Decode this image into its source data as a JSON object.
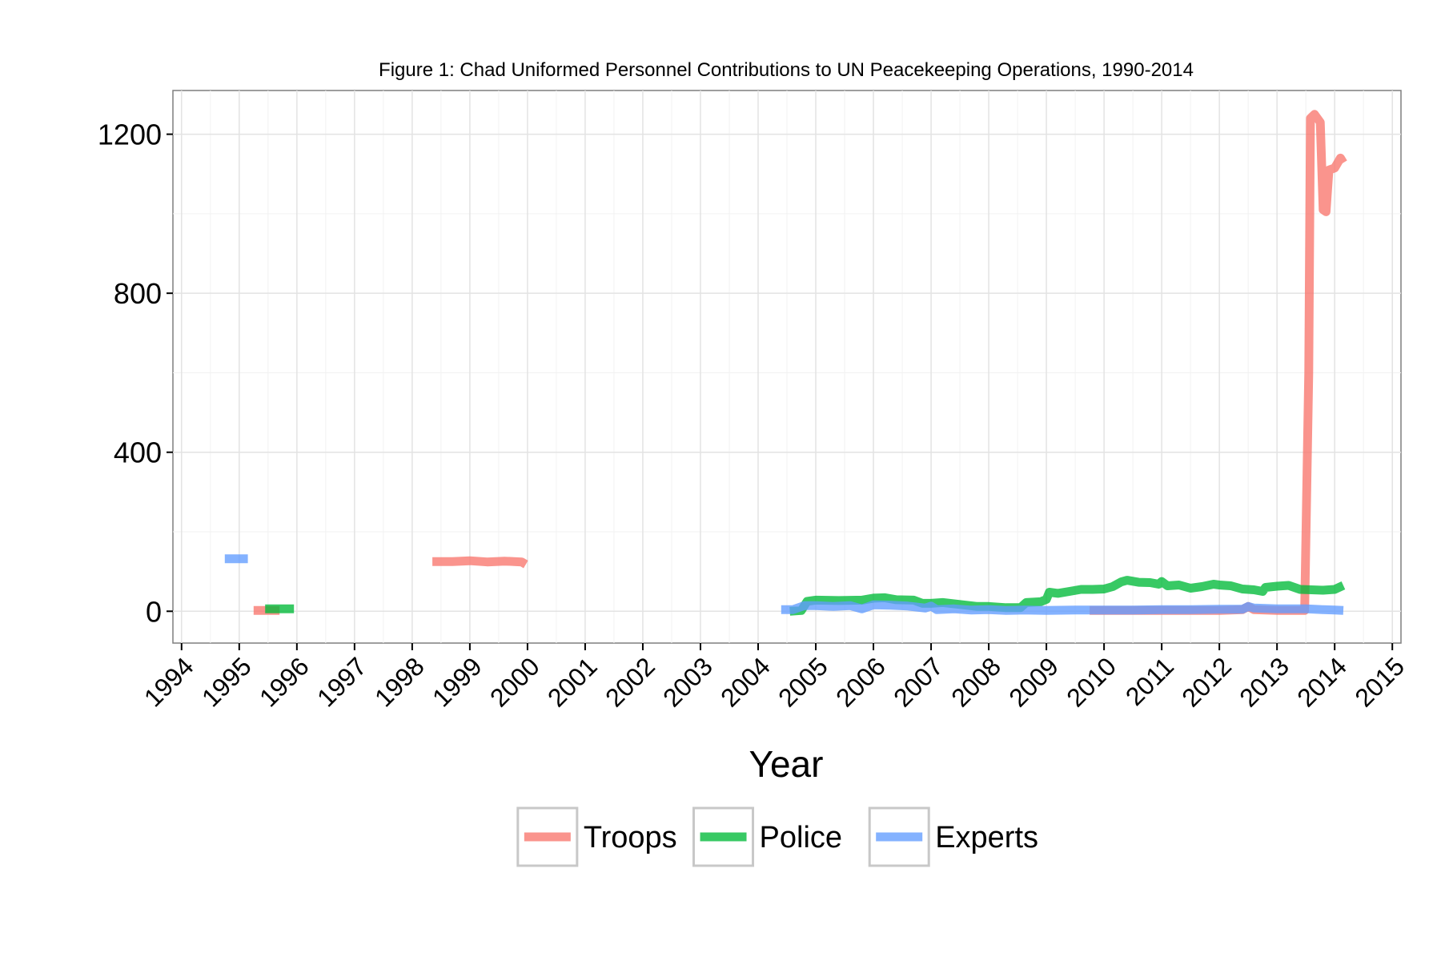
{
  "chart_data": {
    "type": "line",
    "title": "Figure 1: Chad Uniformed Personnel Contributions to UN Peacekeeping Operations, 1990-2014",
    "xlabel": "Year",
    "ylabel": "",
    "xlim": [
      1993.85,
      2015.15
    ],
    "ylim": [
      -80,
      1310
    ],
    "x_ticks": [
      "1994",
      "1995",
      "1996",
      "1997",
      "1998",
      "1999",
      "2000",
      "2001",
      "2002",
      "2003",
      "2004",
      "2005",
      "2006",
      "2007",
      "2008",
      "2009",
      "2010",
      "2011",
      "2012",
      "2013",
      "2014",
      "2015"
    ],
    "y_ticks": [
      "0",
      "400",
      "800",
      "1200"
    ],
    "grid": true,
    "legend_position": "bottom",
    "series": [
      {
        "name": "Troops",
        "color": "#F8766D",
        "segments": [
          [
            [
              1995.25,
              2
            ],
            [
              1995.7,
              2
            ]
          ],
          [
            [
              1998.35,
              125
            ],
            [
              1998.7,
              125
            ],
            [
              1999.0,
              127
            ],
            [
              1999.3,
              124
            ],
            [
              1999.6,
              126
            ],
            [
              1999.9,
              124
            ],
            [
              1999.97,
              118
            ]
          ],
          [
            [
              2009.75,
              2
            ],
            [
              2011.0,
              2
            ],
            [
              2012.0,
              2
            ],
            [
              2012.4,
              4
            ],
            [
              2012.5,
              12
            ],
            [
              2012.6,
              4
            ],
            [
              2013.0,
              2
            ],
            [
              2013.48,
              2
            ],
            [
              2013.55,
              600
            ],
            [
              2013.58,
              1240
            ],
            [
              2013.65,
              1250
            ],
            [
              2013.75,
              1230
            ],
            [
              2013.8,
              1010
            ],
            [
              2013.85,
              1005
            ],
            [
              2013.9,
              1110
            ],
            [
              2014.0,
              1115
            ],
            [
              2014.1,
              1140
            ],
            [
              2014.15,
              1128
            ]
          ]
        ]
      },
      {
        "name": "Police",
        "color": "#00BA38",
        "segments": [
          [
            [
              1995.45,
              6
            ],
            [
              1995.95,
              6
            ]
          ],
          [
            [
              2004.55,
              0
            ],
            [
              2004.75,
              2
            ],
            [
              2004.85,
              25
            ],
            [
              2005.0,
              28
            ],
            [
              2005.4,
              27
            ],
            [
              2005.8,
              28
            ],
            [
              2006.0,
              33
            ],
            [
              2006.2,
              34
            ],
            [
              2006.4,
              29
            ],
            [
              2006.7,
              28
            ],
            [
              2006.85,
              20
            ],
            [
              2007.0,
              20
            ],
            [
              2007.2,
              22
            ],
            [
              2007.5,
              17
            ],
            [
              2007.8,
              12
            ],
            [
              2008.0,
              12
            ],
            [
              2008.3,
              9
            ],
            [
              2008.55,
              9
            ],
            [
              2008.65,
              22
            ],
            [
              2008.9,
              24
            ],
            [
              2009.0,
              30
            ],
            [
              2009.05,
              48
            ],
            [
              2009.2,
              45
            ],
            [
              2009.4,
              50
            ],
            [
              2009.6,
              55
            ],
            [
              2009.8,
              55
            ],
            [
              2010.0,
              56
            ],
            [
              2010.15,
              62
            ],
            [
              2010.3,
              74
            ],
            [
              2010.4,
              78
            ],
            [
              2010.6,
              73
            ],
            [
              2010.8,
              72
            ],
            [
              2010.95,
              68
            ],
            [
              2011.0,
              75
            ],
            [
              2011.1,
              64
            ],
            [
              2011.3,
              66
            ],
            [
              2011.5,
              58
            ],
            [
              2011.7,
              62
            ],
            [
              2011.9,
              68
            ],
            [
              2012.0,
              66
            ],
            [
              2012.2,
              64
            ],
            [
              2012.4,
              56
            ],
            [
              2012.6,
              54
            ],
            [
              2012.75,
              50
            ],
            [
              2012.8,
              60
            ],
            [
              2013.0,
              63
            ],
            [
              2013.2,
              65
            ],
            [
              2013.4,
              55
            ],
            [
              2013.6,
              54
            ],
            [
              2013.8,
              53
            ],
            [
              2014.0,
              55
            ],
            [
              2014.15,
              65
            ]
          ]
        ]
      },
      {
        "name": "Experts",
        "color": "#619CFF",
        "segments": [
          [
            [
              1994.75,
              132
            ],
            [
              1995.15,
              132
            ]
          ],
          [
            [
              2004.4,
              4
            ],
            [
              2004.6,
              4
            ],
            [
              2004.8,
              14
            ],
            [
              2005.0,
              14
            ],
            [
              2005.3,
              12
            ],
            [
              2005.6,
              14
            ],
            [
              2005.8,
              6
            ],
            [
              2006.0,
              16
            ],
            [
              2006.3,
              15
            ],
            [
              2006.6,
              13
            ],
            [
              2006.9,
              8
            ],
            [
              2007.0,
              13
            ],
            [
              2007.1,
              4
            ],
            [
              2007.4,
              6
            ],
            [
              2007.7,
              3
            ],
            [
              2008.0,
              4
            ],
            [
              2008.3,
              2
            ],
            [
              2008.6,
              3
            ],
            [
              2009.0,
              2
            ],
            [
              2009.5,
              3
            ],
            [
              2010.0,
              3
            ],
            [
              2010.5,
              3
            ],
            [
              2011.0,
              4
            ],
            [
              2011.5,
              4
            ],
            [
              2012.0,
              5
            ],
            [
              2012.4,
              5
            ],
            [
              2012.5,
              12
            ],
            [
              2012.6,
              8
            ],
            [
              2013.0,
              6
            ],
            [
              2013.5,
              6
            ],
            [
              2013.8,
              4
            ],
            [
              2014.0,
              3
            ],
            [
              2014.15,
              2
            ]
          ]
        ]
      }
    ]
  }
}
